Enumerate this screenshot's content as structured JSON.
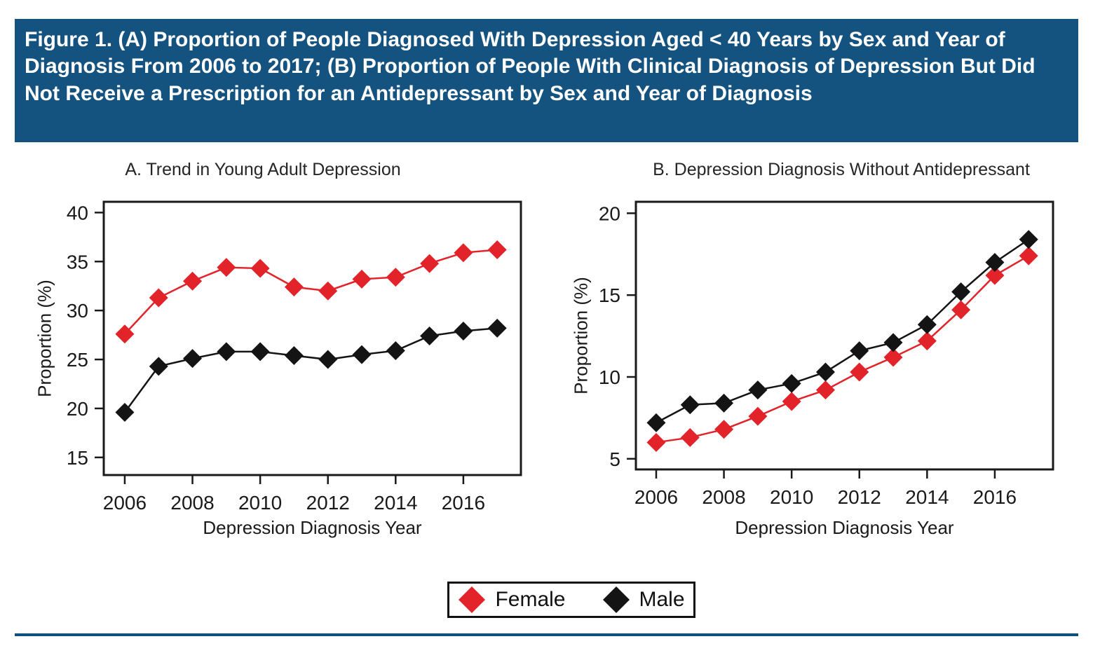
{
  "figure_title": "Figure 1. (A) Proportion of People Diagnosed With Depression Aged < 40 Years by Sex and Year of Diagnosis From 2006 to 2017; (B) Proportion of People With Clinical Diagnosis of Depression But Did Not Receive a Prescription for an Antidepressant by Sex and Year of Diagnosis",
  "colors": {
    "header_bg": "#14537f",
    "divider": "#10507c",
    "female": "#e2232a",
    "male": "#141414",
    "axis": "#1a1a1a"
  },
  "legend": {
    "items": [
      {
        "label": "Female",
        "color": "#e2232a",
        "marker": "diamond-icon"
      },
      {
        "label": "Male",
        "color": "#141414",
        "marker": "diamond-icon"
      }
    ]
  },
  "chart_data": [
    {
      "id": "A",
      "type": "line",
      "title": "A. Trend in Young Adult Depression",
      "xlabel": "Depression Diagnosis Year",
      "ylabel": "Proportion (%)",
      "x": [
        2006,
        2007,
        2008,
        2009,
        2010,
        2011,
        2012,
        2013,
        2014,
        2015,
        2016,
        2017
      ],
      "xticks": [
        2006,
        2008,
        2010,
        2012,
        2014,
        2016
      ],
      "yticks": [
        15,
        20,
        25,
        30,
        35,
        40
      ],
      "xlim": [
        2005.38,
        2017.7
      ],
      "ylim": [
        13.2,
        41.1
      ],
      "grid": false,
      "marker": "diamond",
      "series": [
        {
          "name": "Female",
          "color": "#e2232a",
          "values": [
            27.6,
            31.3,
            33.0,
            34.4,
            34.3,
            32.4,
            32.0,
            33.2,
            33.4,
            34.8,
            35.9,
            36.2
          ]
        },
        {
          "name": "Male",
          "color": "#141414",
          "values": [
            19.6,
            24.3,
            25.1,
            25.8,
            25.8,
            25.4,
            25.0,
            25.5,
            25.9,
            27.4,
            27.9,
            28.2
          ]
        }
      ]
    },
    {
      "id": "B",
      "type": "line",
      "title": "B. Depression Diagnosis Without Antidepressant",
      "xlabel": "Depression Diagnosis Year",
      "ylabel": "Proportion (%)",
      "x": [
        2006,
        2007,
        2008,
        2009,
        2010,
        2011,
        2012,
        2013,
        2014,
        2015,
        2016,
        2017
      ],
      "xticks": [
        2006,
        2008,
        2010,
        2012,
        2014,
        2016
      ],
      "yticks": [
        5,
        10,
        15,
        20
      ],
      "xlim": [
        2005.4,
        2017.72
      ],
      "ylim": [
        4.35,
        20.7
      ],
      "grid": false,
      "marker": "diamond",
      "series": [
        {
          "name": "Female",
          "color": "#e2232a",
          "values": [
            6.0,
            6.3,
            6.8,
            7.6,
            8.5,
            9.2,
            10.3,
            11.2,
            12.2,
            14.1,
            16.2,
            17.4
          ]
        },
        {
          "name": "Male",
          "color": "#141414",
          "values": [
            7.2,
            8.3,
            8.4,
            9.2,
            9.6,
            10.3,
            11.6,
            12.1,
            13.2,
            15.2,
            17.0,
            18.4
          ]
        }
      ]
    }
  ]
}
